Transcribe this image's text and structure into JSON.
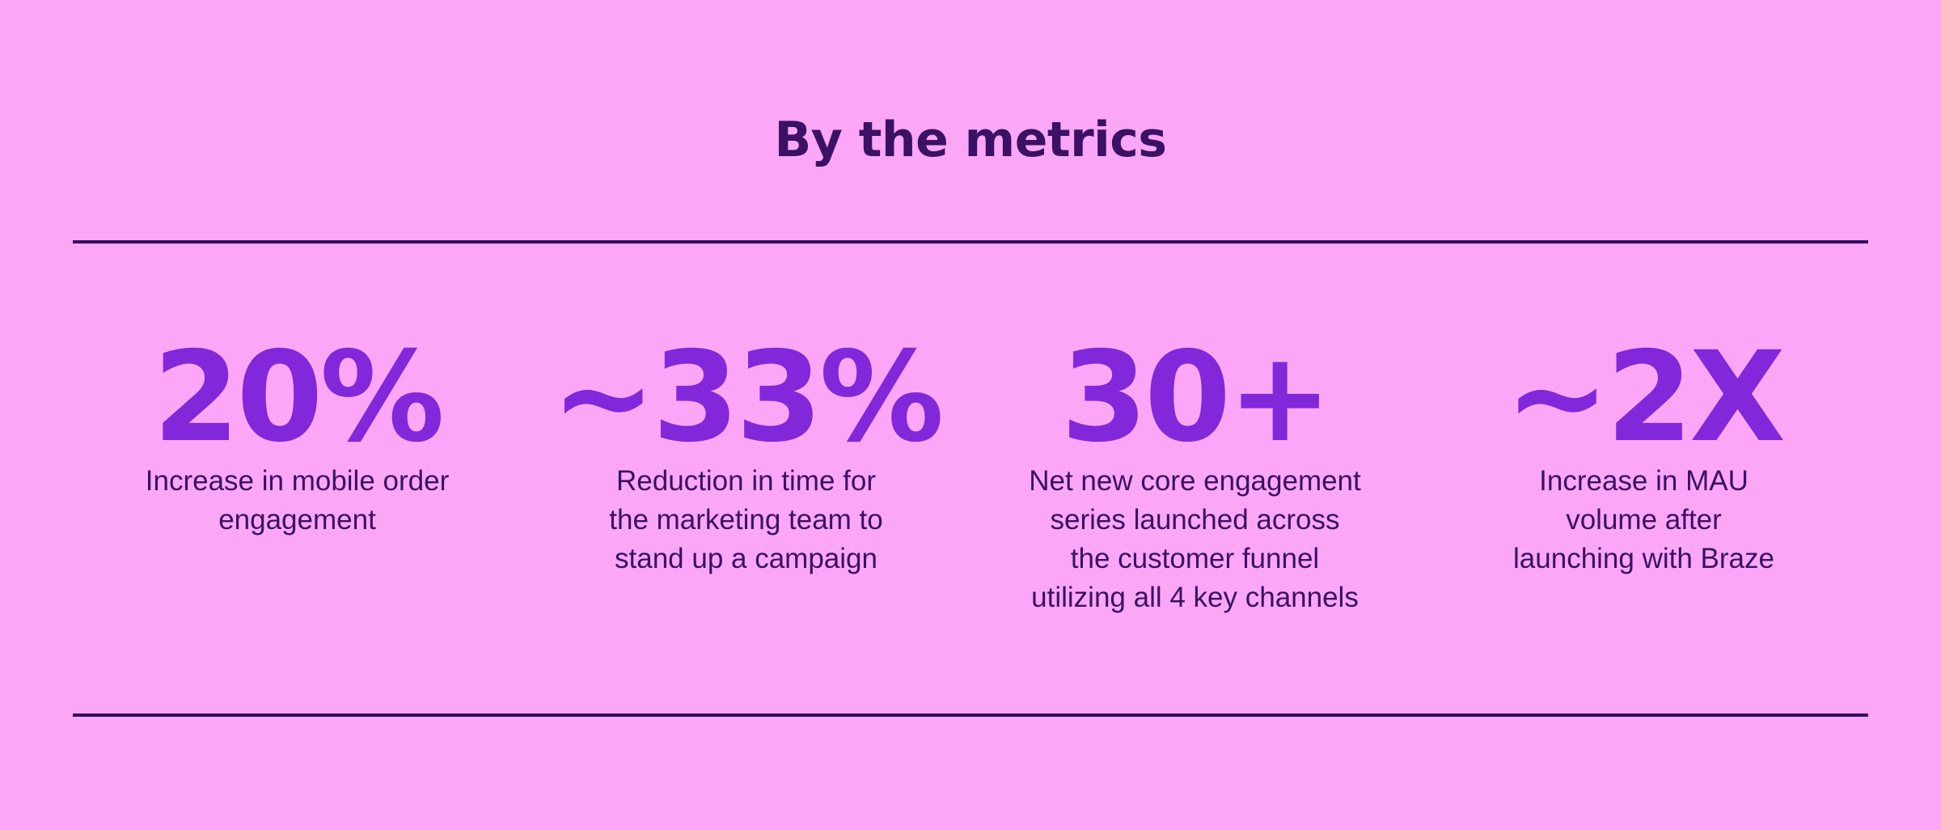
{
  "page": {
    "colors": {
      "bg": "#FCA6F8",
      "accent": "#8227DA",
      "text": "#3A1163",
      "rule": "#36085E"
    }
  },
  "header": {
    "title": "By the metrics"
  },
  "stats": [
    {
      "value": "20%",
      "caption": "Increase in mobile order\nengagement"
    },
    {
      "value": "~33%",
      "caption": "Reduction in time for\nthe marketing team to\nstand up a campaign"
    },
    {
      "value": "30+",
      "caption": "Net new core engagement\nseries launched across\nthe customer funnel\nutilizing all 4 key channels"
    },
    {
      "value": "~2X",
      "caption": "Increase in MAU\nvolume after\nlaunching with Braze"
    }
  ]
}
